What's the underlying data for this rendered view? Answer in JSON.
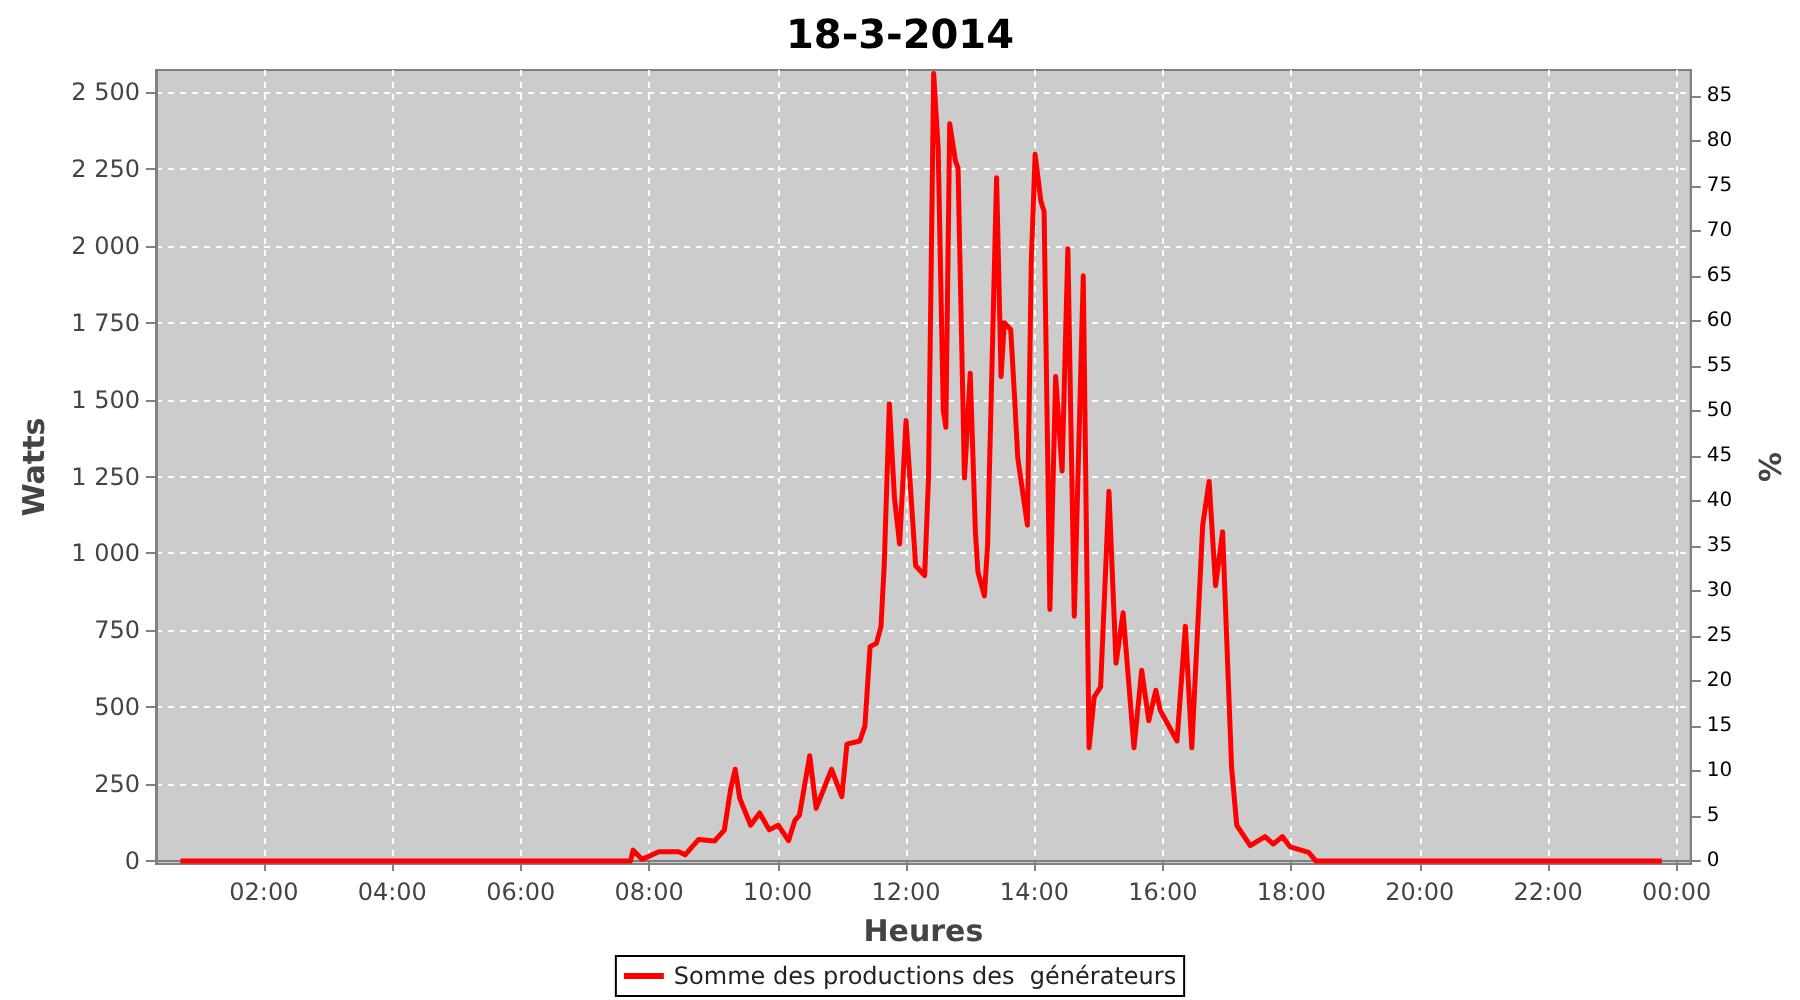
{
  "chart_data": {
    "type": "line",
    "title": "18-3-2014",
    "xlabel": "Heures",
    "ylabel": "Watts",
    "y2label": "%",
    "x": [
      0.7,
      7.5,
      7.71,
      7.75,
      7.89,
      8.15,
      8.46,
      8.56,
      8.77,
      9.02,
      9.17,
      9.27,
      9.34,
      9.41,
      9.58,
      9.72,
      9.87,
      10.01,
      10.17,
      10.27,
      10.34,
      10.5,
      10.6,
      10.84,
      11.0,
      11.08,
      11.28,
      11.36,
      11.44,
      11.54,
      11.61,
      11.66,
      11.74,
      11.82,
      11.9,
      12.0,
      12.15,
      12.29,
      12.35,
      12.43,
      12.5,
      12.58,
      12.62,
      12.68,
      12.77,
      12.81,
      12.91,
      13.0,
      13.08,
      13.12,
      13.22,
      13.27,
      13.41,
      13.48,
      13.53,
      13.63,
      13.69,
      13.74,
      13.89,
      13.95,
      14.01,
      14.1,
      14.15,
      14.24,
      14.33,
      14.43,
      14.52,
      14.62,
      14.76,
      14.85,
      14.93,
      15.03,
      15.16,
      15.27,
      15.38,
      15.55,
      15.67,
      15.78,
      15.89,
      15.96,
      16.22,
      16.35,
      16.45,
      16.62,
      16.72,
      16.82,
      16.93,
      17.07,
      17.15,
      17.36,
      17.59,
      17.72,
      17.86,
      17.98,
      18.27,
      18.38,
      23.77
    ],
    "series": [
      {
        "name": "Somme des productions des  générateurs",
        "color": "#ff0000",
        "values": [
          0,
          0,
          0,
          35,
          5,
          30,
          30,
          20,
          70,
          65,
          100,
          235,
          298,
          204,
          116,
          156,
          101,
          116,
          66,
          132,
          149,
          342,
          171,
          298,
          209,
          380,
          390,
          439,
          697,
          708,
          763,
          960,
          1487,
          1180,
          1031,
          1432,
          960,
          928,
          1245,
          2561,
          2320,
          1465,
          1410,
          2397,
          2276,
          2254,
          1245,
          1586,
          1070,
          939,
          862,
          1026,
          2222,
          1575,
          1750,
          1728,
          1509,
          1311,
          1092,
          1947,
          2298,
          2145,
          2112,
          818,
          1575,
          1268,
          1991,
          796,
          1903,
          368,
          533,
          566,
          1202,
          643,
          807,
          368,
          620,
          456,
          555,
          489,
          390,
          763,
          368,
          1092,
          1234,
          895,
          1070,
          303,
          116,
          50,
          79,
          55,
          79,
          46,
          28,
          0,
          0
        ]
      }
    ],
    "xlim": [
      0.32,
      24.22
    ],
    "xticks": [
      {
        "value": 2,
        "label": "02:00"
      },
      {
        "value": 4,
        "label": "04:00"
      },
      {
        "value": 6,
        "label": "06:00"
      },
      {
        "value": 8,
        "label": "08:00"
      },
      {
        "value": 10,
        "label": "10:00"
      },
      {
        "value": 12,
        "label": "12:00"
      },
      {
        "value": 14,
        "label": "14:00"
      },
      {
        "value": 16,
        "label": "16:00"
      },
      {
        "value": 18,
        "label": "18:00"
      },
      {
        "value": 20,
        "label": "20:00"
      },
      {
        "value": 22,
        "label": "22:00"
      },
      {
        "value": 24,
        "label": "00:00"
      }
    ],
    "ylim": [
      -10,
      2572
    ],
    "yticks": [
      0,
      250,
      500,
      750,
      {
        "value": 1000,
        "label": "1 000"
      },
      {
        "value": 1250,
        "label": "1 250"
      },
      {
        "value": 1500,
        "label": "1 500"
      },
      {
        "value": 1750,
        "label": "1 750"
      },
      {
        "value": 2000,
        "label": "2 000"
      },
      {
        "value": 2250,
        "label": "2 250"
      },
      {
        "value": 2500,
        "label": "2 500"
      }
    ],
    "y2lim": [
      -0.3,
      87.9
    ],
    "y2ticks": [
      0,
      5,
      10,
      15,
      20,
      25,
      30,
      35,
      40,
      45,
      50,
      55,
      60,
      65,
      70,
      75,
      80,
      85
    ],
    "grid": true,
    "legend": "bottom",
    "marker": "none",
    "line_style": "solid"
  }
}
